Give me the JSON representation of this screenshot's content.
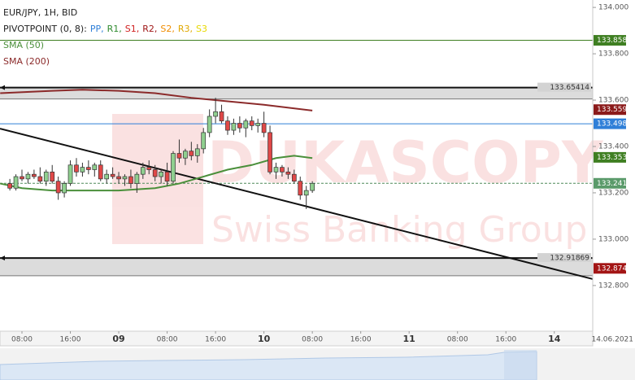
{
  "chart_data": {
    "type": "candlestick",
    "title": "EUR/JPY, 1H, BID",
    "pivot_legend": {
      "name": "PIVOTPOINT (0, 8):",
      "items": [
        {
          "name": "PP,",
          "color": "#2f7fd8"
        },
        {
          "name": "R1,",
          "color": "#2e8b2e"
        },
        {
          "name": "S1,",
          "color": "#d02020"
        },
        {
          "name": "R2,",
          "color": "#a01818"
        },
        {
          "name": "S2,",
          "color": "#f08c00"
        },
        {
          "name": "R3,",
          "color": "#e0a800"
        },
        {
          "name": "S3",
          "color": "#e8d800"
        }
      ]
    },
    "watermark": [
      "DUKASCOPY",
      "Swiss Banking Group"
    ],
    "xlim": [
      -3.63,
      94.35
    ],
    "ylim": [
      132.603,
      134.032
    ],
    "yticks": [
      {
        "value": 132.8,
        "label": "132.800"
      },
      {
        "value": 133.0,
        "label": "133.000"
      },
      {
        "value": 133.2,
        "label": "133.200"
      },
      {
        "value": 133.4,
        "label": "133.400"
      },
      {
        "value": 133.6,
        "label": "133.600"
      },
      {
        "value": 133.8,
        "label": "133.800"
      },
      {
        "value": 134.0,
        "label": "134.000"
      }
    ],
    "xticks": [
      {
        "value": 0,
        "label": "08:00"
      },
      {
        "value": 8,
        "label": "16:00"
      },
      {
        "value": 16,
        "label": "09"
      },
      {
        "value": 24,
        "label": "08:00"
      },
      {
        "value": 32,
        "label": "16:00"
      },
      {
        "value": 40,
        "label": "10"
      },
      {
        "value": 48,
        "label": "08:00"
      },
      {
        "value": 56,
        "label": "16:00"
      },
      {
        "value": 64,
        "label": "11"
      },
      {
        "value": 72,
        "label": "08:00"
      },
      {
        "value": 80,
        "label": "16:00"
      },
      {
        "value": 88,
        "label": "14"
      }
    ],
    "date_label": "14.06.2021",
    "x": [
      -2,
      -1,
      0,
      1,
      2,
      3,
      4,
      5,
      6,
      7,
      8,
      9,
      10,
      11,
      12,
      13,
      14,
      15,
      16,
      17,
      18,
      19,
      20,
      21,
      22,
      23,
      24,
      25,
      26,
      27,
      28,
      29,
      30,
      31,
      32,
      33,
      34,
      35,
      36,
      37,
      38,
      39,
      40,
      41,
      42,
      43,
      44,
      45,
      46,
      47,
      48
    ],
    "candles": [
      [
        133.24,
        133.26,
        133.21,
        133.22
      ],
      [
        133.22,
        133.28,
        133.21,
        133.27
      ],
      [
        133.27,
        133.3,
        133.25,
        133.26
      ],
      [
        133.26,
        133.29,
        133.24,
        133.28
      ],
      [
        133.28,
        133.3,
        133.26,
        133.27
      ],
      [
        133.27,
        133.31,
        133.24,
        133.25
      ],
      [
        133.25,
        133.3,
        133.23,
        133.29
      ],
      [
        133.29,
        133.32,
        133.24,
        133.25
      ],
      [
        133.25,
        133.27,
        133.17,
        133.2
      ],
      [
        133.2,
        133.25,
        133.18,
        133.24
      ],
      [
        133.24,
        133.34,
        133.23,
        133.32
      ],
      [
        133.32,
        133.35,
        133.27,
        133.29
      ],
      [
        133.29,
        133.33,
        133.27,
        133.31
      ],
      [
        133.31,
        133.34,
        133.28,
        133.3
      ],
      [
        133.3,
        133.33,
        133.27,
        133.32
      ],
      [
        133.32,
        133.34,
        133.25,
        133.26
      ],
      [
        133.26,
        133.3,
        133.24,
        133.28
      ],
      [
        133.28,
        133.31,
        133.26,
        133.27
      ],
      [
        133.27,
        133.29,
        133.24,
        133.26
      ],
      [
        133.26,
        133.28,
        133.23,
        133.27
      ],
      [
        133.27,
        133.3,
        133.22,
        133.24
      ],
      [
        133.24,
        133.29,
        133.2,
        133.28
      ],
      [
        133.28,
        133.33,
        133.26,
        133.31
      ],
      [
        133.31,
        133.34,
        133.28,
        133.3
      ],
      [
        133.3,
        133.32,
        133.25,
        133.27
      ],
      [
        133.27,
        133.3,
        133.24,
        133.29
      ],
      [
        133.29,
        133.33,
        133.23,
        133.25
      ],
      [
        133.25,
        133.38,
        133.24,
        133.37
      ],
      [
        133.37,
        133.43,
        133.33,
        133.35
      ],
      [
        133.35,
        133.39,
        133.32,
        133.38
      ],
      [
        133.38,
        133.42,
        133.34,
        133.36
      ],
      [
        133.36,
        133.41,
        133.33,
        133.39
      ],
      [
        133.39,
        133.48,
        133.37,
        133.46
      ],
      [
        133.46,
        133.56,
        133.44,
        133.53
      ],
      [
        133.53,
        133.61,
        133.5,
        133.55
      ],
      [
        133.55,
        133.58,
        133.5,
        133.51
      ],
      [
        133.51,
        133.53,
        133.45,
        133.47
      ],
      [
        133.47,
        133.52,
        133.45,
        133.5
      ],
      [
        133.5,
        133.53,
        133.46,
        133.48
      ],
      [
        133.48,
        133.52,
        133.44,
        133.51
      ],
      [
        133.51,
        133.53,
        133.47,
        133.49
      ],
      [
        133.49,
        133.52,
        133.46,
        133.5
      ],
      [
        133.5,
        133.55,
        133.44,
        133.46
      ],
      [
        133.46,
        133.49,
        133.28,
        133.29
      ],
      [
        133.29,
        133.33,
        133.26,
        133.31
      ],
      [
        133.31,
        133.32,
        133.27,
        133.29
      ],
      [
        133.29,
        133.31,
        133.26,
        133.28
      ],
      [
        133.28,
        133.3,
        133.24,
        133.25
      ],
      [
        133.25,
        133.27,
        133.17,
        133.19
      ],
      [
        133.19,
        133.23,
        133.13,
        133.21
      ],
      [
        133.21,
        133.25,
        133.2,
        133.241
      ]
    ],
    "up_color": "#8fcf8f",
    "down_color": "#e04848",
    "series": [
      {
        "name": "SMA (50)",
        "color": "#4a8f3a",
        "x": [
          -3.6,
          0,
          5,
          10,
          16,
          22,
          26,
          30,
          34,
          38,
          42,
          45,
          48
        ],
        "values": [
          133.24,
          133.22,
          133.21,
          133.21,
          133.21,
          133.22,
          133.24,
          133.27,
          133.3,
          133.32,
          133.35,
          133.36,
          133.35
        ]
      },
      {
        "name": "SMA (200)",
        "color": "#8b2a2a",
        "x": [
          -3.6,
          5,
          10,
          16,
          22,
          28,
          34,
          40,
          48
        ],
        "values": [
          133.63,
          133.64,
          133.645,
          133.64,
          133.63,
          133.61,
          133.595,
          133.58,
          133.555
        ]
      }
    ],
    "bands": [
      {
        "upper": 133.65414,
        "lower": 133.605
      },
      {
        "upper": 132.91869,
        "lower": 132.842
      }
    ],
    "trendline": {
      "x": [
        -3.63,
        94.35
      ],
      "y": [
        133.477,
        132.828
      ]
    },
    "levels": [
      {
        "value": 133.858,
        "color": "#3f7f22",
        "style": "solid"
      },
      {
        "value": 133.498,
        "color": "#2f7fd8",
        "style": "solid"
      },
      {
        "value": 133.241,
        "color": "#4f8a5a",
        "style": "dashed"
      }
    ],
    "price_labels": [
      {
        "value": 133.858,
        "color": "#3f7f22"
      },
      {
        "value": 133.559,
        "color": "#8b1a1a"
      },
      {
        "value": 133.498,
        "color": "#2f7fd8"
      },
      {
        "value": 133.353,
        "color": "#3f7f22"
      },
      {
        "value": 133.241,
        "color": "#5a9a6a"
      },
      {
        "value": 132.874,
        "color": "#a31515"
      }
    ]
  }
}
